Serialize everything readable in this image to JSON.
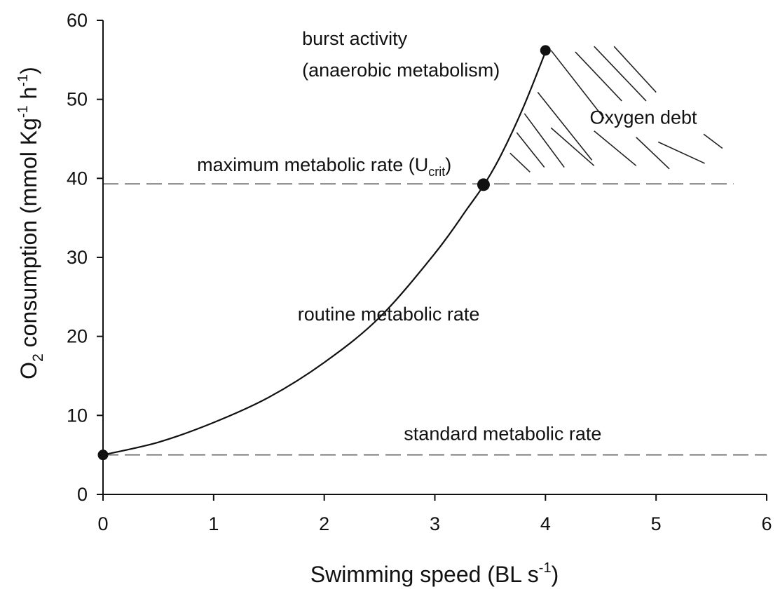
{
  "chart_data": {
    "type": "line",
    "xlabel": "Swimming speed (BL s",
    "xlabel_sup": "-1",
    "xlabel_tail": ")",
    "ylabel": {
      "o": "O",
      "sub2": "2",
      "mid": " consumption (mmol Kg",
      "sup1": "-1",
      "h": " h",
      "sup2": "-1",
      "close": ")"
    },
    "xlim": [
      0,
      6
    ],
    "ylim": [
      0,
      60
    ],
    "x_ticks": [
      "0",
      "1",
      "2",
      "3",
      "4",
      "5",
      "6"
    ],
    "y_ticks": [
      "0",
      "10",
      "20",
      "30",
      "40",
      "50",
      "60"
    ],
    "grid": false,
    "series": [
      {
        "x": [
          0,
          0.5,
          1,
          1.5,
          2,
          2.5,
          3,
          3.3,
          3.45,
          3.6,
          3.8,
          4.0
        ],
        "y": [
          5,
          6.6,
          9.1,
          12.3,
          16.7,
          22.4,
          30.5,
          36.3,
          39.3,
          43.0,
          49.0,
          56.0
        ]
      }
    ],
    "markers": [
      {
        "x": 0,
        "y": 5
      },
      {
        "x": 3.44,
        "y": 39.2
      },
      {
        "x": 4.0,
        "y": 56.2
      }
    ],
    "reference_lines": [
      {
        "y": 39.3,
        "x_start": 0,
        "x_end": 5.7,
        "style": "dashed"
      },
      {
        "y": 5.0,
        "x_start": 0,
        "x_end": 6,
        "style": "dashed"
      }
    ],
    "annotations": [
      {
        "text": "burst activity",
        "x": 1.8,
        "y": 56.9
      },
      {
        "text": "(anaerobic metabolism)",
        "x": 1.8,
        "y": 52.9
      },
      {
        "text": "Oxygen debt",
        "x": 4.4,
        "y": 46.9
      },
      {
        "text": "maximum metabolic rate (U",
        "sub": "crit",
        "close": ")",
        "x": 0.85,
        "y": 40.9
      },
      {
        "text": "routine metabolic rate",
        "x": 1.76,
        "y": 22.0
      },
      {
        "text": "standard metabolic rate",
        "x": 2.72,
        "y": 6.9
      }
    ]
  }
}
